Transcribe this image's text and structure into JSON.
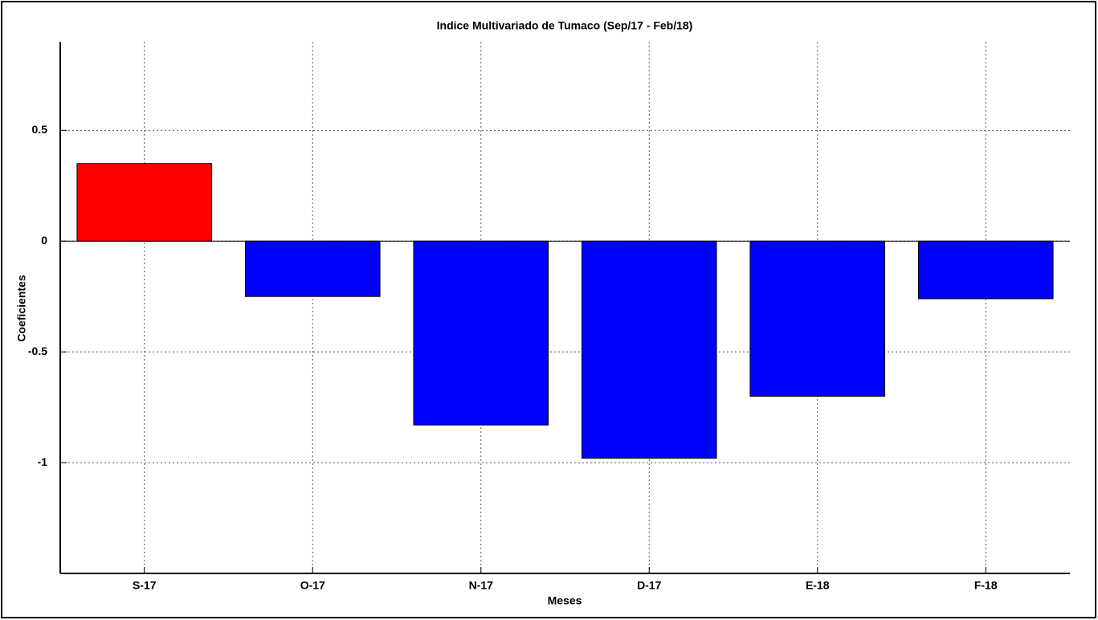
{
  "chart_data": {
    "type": "bar",
    "title": "Indice Multivariado de Tumaco (Sep/17 - Feb/18)",
    "x_label": "Meses",
    "y_label": "Coeficientes",
    "categories": [
      "S-17",
      "O-17",
      "N-17",
      "D-17",
      "E-18",
      "F-18"
    ],
    "values": [
      0.35,
      -0.25,
      -0.83,
      -0.98,
      -0.7,
      -0.26
    ],
    "colors": [
      "#ff0000",
      "#0000ff",
      "#0000ff",
      "#0000ff",
      "#0000ff",
      "#0000ff"
    ],
    "ylim": [
      -1.5,
      0.9
    ],
    "yticks": [
      -1,
      -0.5,
      0,
      0.5
    ],
    "grid": true
  }
}
